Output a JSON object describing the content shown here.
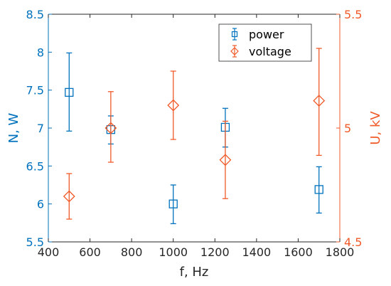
{
  "chart_data": {
    "type": "scatter",
    "title": "",
    "x_axis": {
      "label": "f, Hz",
      "range": [
        400,
        1800
      ],
      "ticks": [
        400,
        600,
        800,
        1000,
        1200,
        1400,
        1600,
        1800
      ],
      "tick_labels": [
        "400",
        "600",
        "800",
        "1000",
        "1200",
        "1400",
        "1600",
        "1800"
      ]
    },
    "y_axis_left": {
      "label": "N, W",
      "range": [
        5.5,
        8.5
      ],
      "ticks": [
        5.5,
        6,
        6.5,
        7,
        7.5,
        8,
        8.5
      ],
      "tick_labels": [
        "5.5",
        "6",
        "6.5",
        "7",
        "7.5",
        "8",
        "8.5"
      ]
    },
    "y_axis_right": {
      "label": "U, kV",
      "range": [
        4.5,
        5.5
      ],
      "ticks": [
        4.5,
        5,
        5.5
      ],
      "tick_labels": [
        "4.5",
        "5",
        "5.5"
      ]
    },
    "grid": false,
    "legend_position": "top-right",
    "series": [
      {
        "name": "power",
        "axis": "left",
        "marker": "square",
        "color": "#0072BD",
        "points": [
          {
            "x": 500,
            "y": 7.47,
            "lo": 6.96,
            "hi": 7.99
          },
          {
            "x": 700,
            "y": 6.98,
            "lo": 6.79,
            "hi": 7.16
          },
          {
            "x": 1000,
            "y": 6.0,
            "lo": 5.74,
            "hi": 6.25
          },
          {
            "x": 1250,
            "y": 7.01,
            "lo": 6.75,
            "hi": 7.26
          },
          {
            "x": 1700,
            "y": 6.19,
            "lo": 5.88,
            "hi": 6.49
          }
        ]
      },
      {
        "name": "voltage",
        "axis": "right",
        "marker": "diamond",
        "color": "#F05A28",
        "points": [
          {
            "x": 500,
            "y": 4.7,
            "lo": 4.6,
            "hi": 4.8
          },
          {
            "x": 700,
            "y": 5.0,
            "lo": 4.85,
            "hi": 5.16
          },
          {
            "x": 1000,
            "y": 5.1,
            "lo": 4.95,
            "hi": 5.25
          },
          {
            "x": 1250,
            "y": 4.86,
            "lo": 4.69,
            "hi": 5.03
          },
          {
            "x": 1700,
            "y": 5.12,
            "lo": 4.88,
            "hi": 5.35
          }
        ]
      }
    ]
  }
}
